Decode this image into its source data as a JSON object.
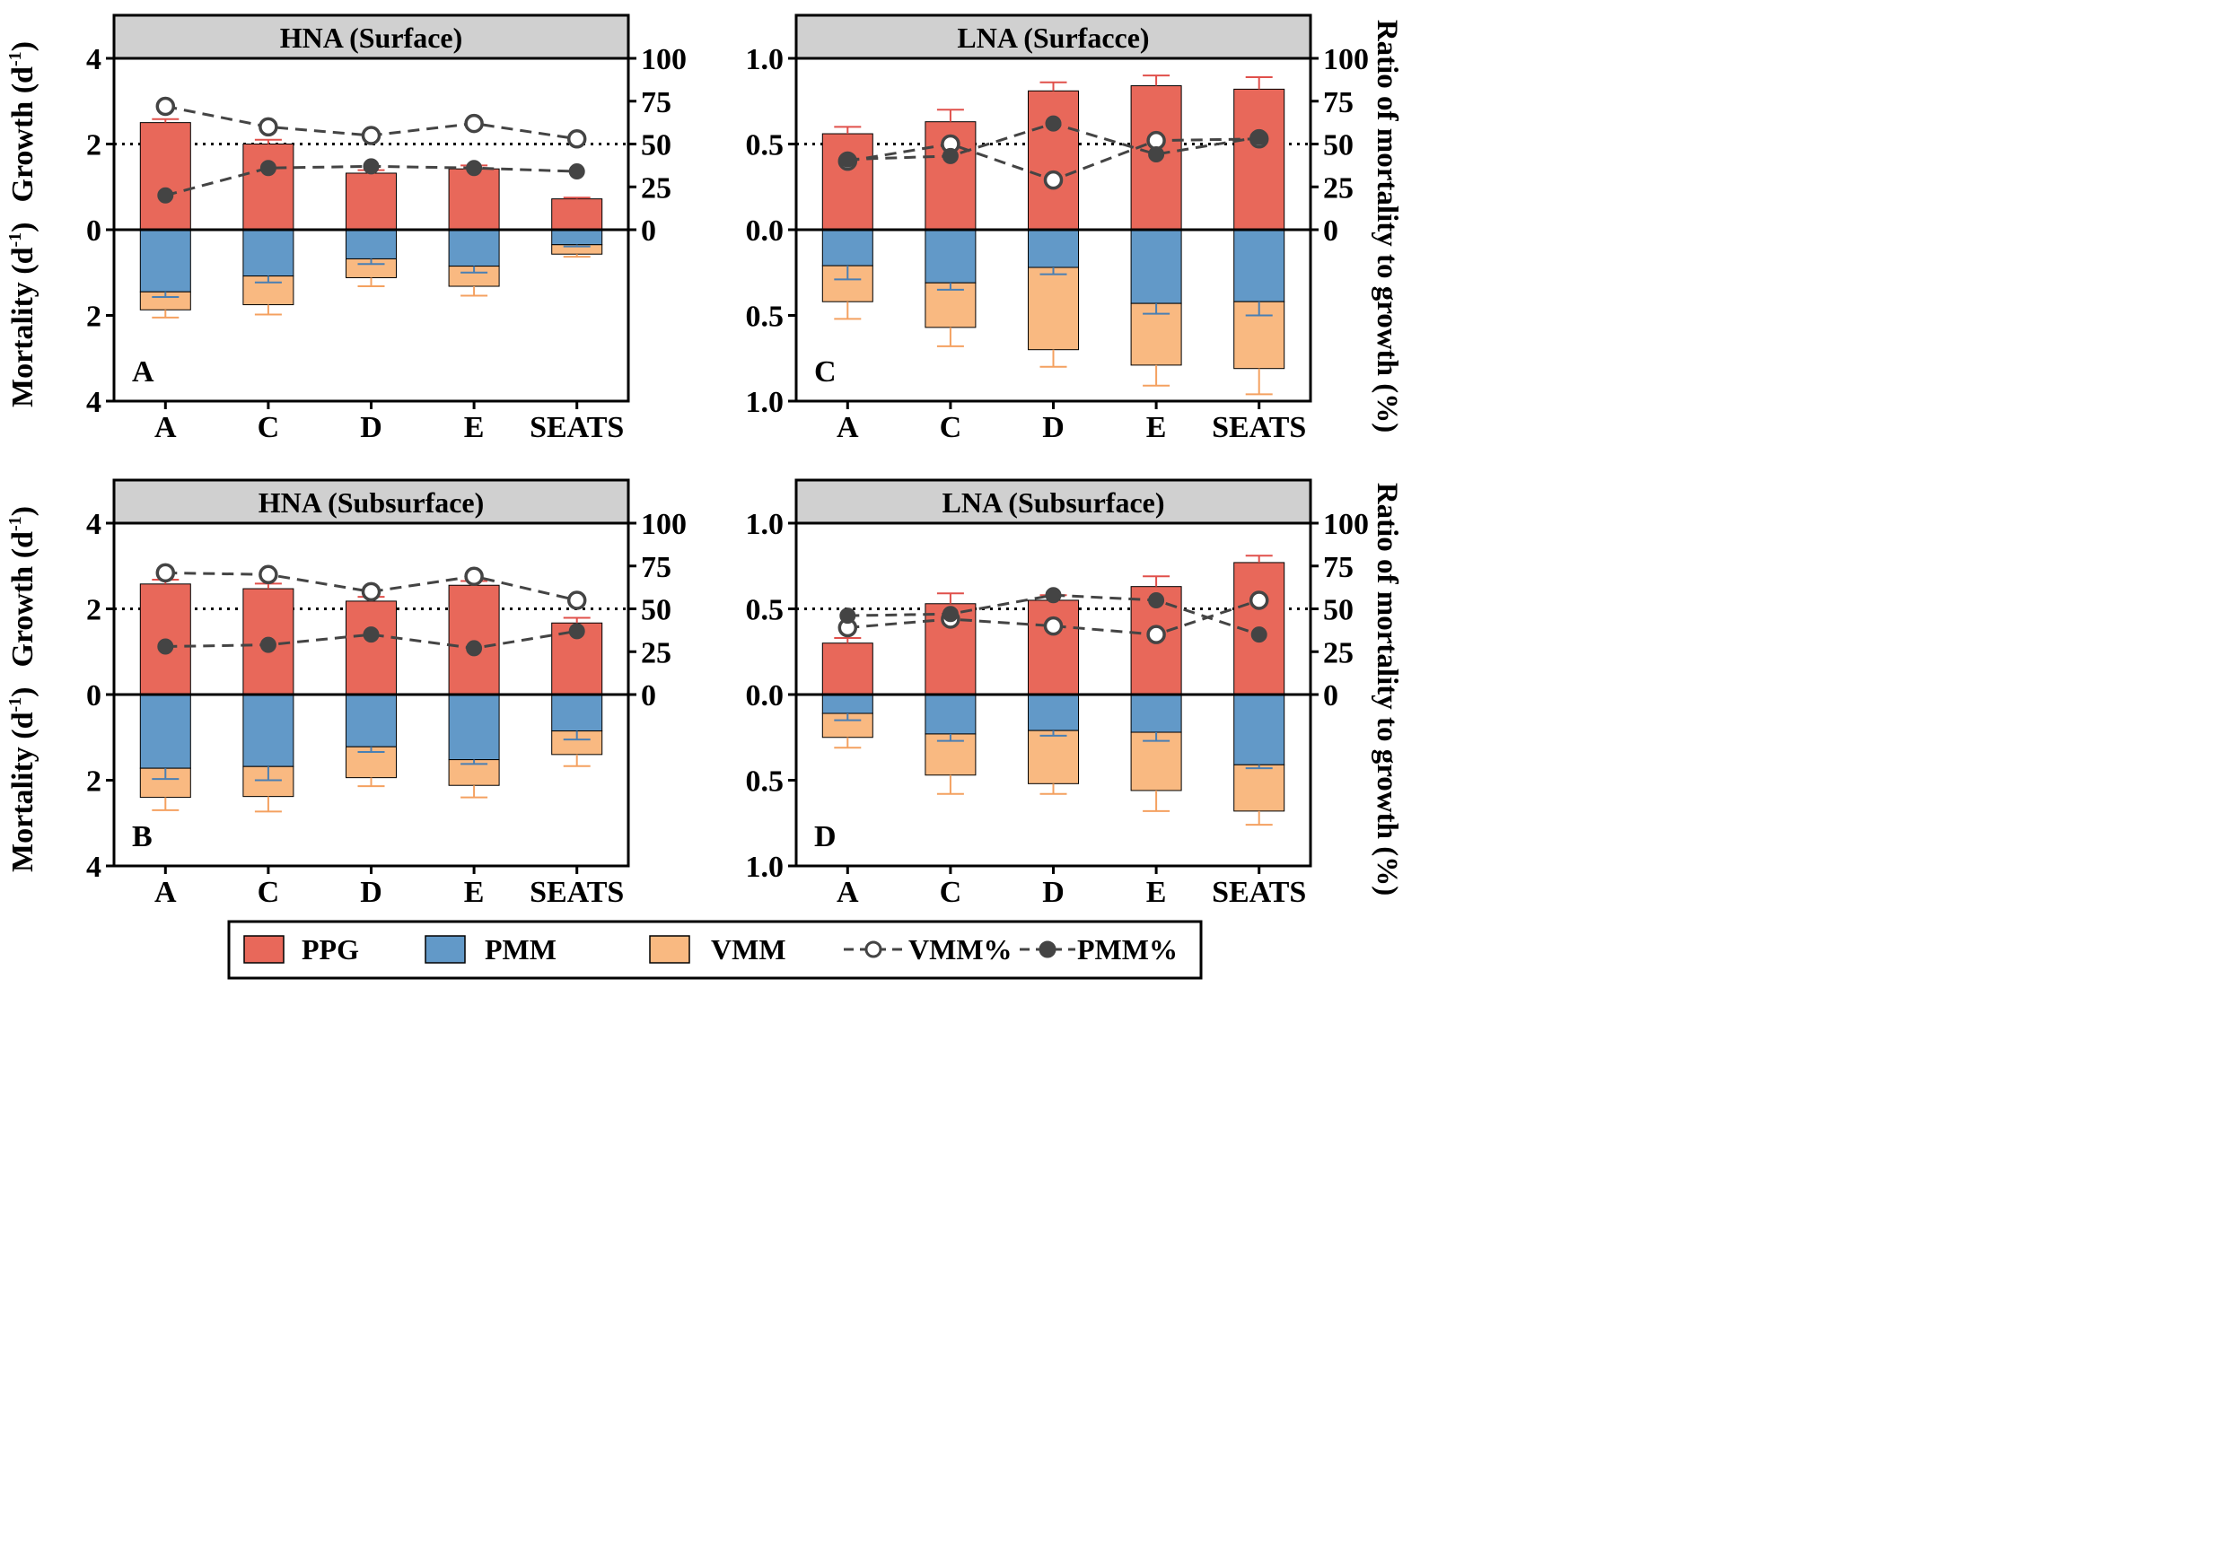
{
  "figure": {
    "left_axis_label": {
      "growth": "Growth (d",
      "mortality": "Mortality (d",
      "unit_sup": "-1",
      "unit_close": ")"
    },
    "right_axis_label": "Ratio of mortality to growth (%)",
    "categories": [
      "A",
      "C",
      "D",
      "E",
      "SEATS"
    ],
    "colors": {
      "PPG": "#e8685a",
      "PMM": "#6299c8",
      "VMM": "#f9b981",
      "PPG_err": "#e0504b",
      "PMM_err": "#4a7fb3",
      "VMM_err": "#f4a160",
      "line": "#444444"
    }
  },
  "legend": {
    "ppg": "PPG",
    "pmm": "PMM",
    "vmm": "VMM",
    "vmm_pct": "VMM%",
    "pmm_pct": "PMM%"
  },
  "panels": {
    "hna_surface": {
      "title": "HNA (Surface)",
      "letter": "A"
    },
    "lna_surface": {
      "title": "LNA (Surfacce)",
      "letter": "C"
    },
    "hna_subsurface": {
      "title": "HNA (Subsurface)",
      "letter": "B"
    },
    "lna_subsurface": {
      "title": "LNA (Subsurface)",
      "letter": "D"
    }
  },
  "chart_data": [
    {
      "id": "hna_surface",
      "type": "bar",
      "title": "HNA (Surface)",
      "panel_letter": "A",
      "categories": [
        "A",
        "C",
        "D",
        "E",
        "SEATS"
      ],
      "ylabel": "Growth (d-1) / Mortality (d-1)",
      "y2label": "Ratio of mortality to growth (%)",
      "ylim_growth": [
        0,
        4
      ],
      "ylim_mortality": [
        0,
        4
      ],
      "yticks": [
        "4",
        "2",
        "0",
        "2",
        "4"
      ],
      "y2lim": [
        0,
        100
      ],
      "y2ticks": [
        "100",
        "75",
        "50",
        "25",
        "0"
      ],
      "reference_line_pct": 50,
      "series": [
        {
          "name": "PPG",
          "kind": "growth_bar",
          "values": [
            2.5,
            2.0,
            1.32,
            1.42,
            0.72
          ],
          "error": [
            0.08,
            0.1,
            0.07,
            0.08,
            0.03
          ]
        },
        {
          "name": "PMM",
          "kind": "mortality_bar",
          "values": [
            1.45,
            1.08,
            0.68,
            0.85,
            0.35
          ],
          "error": [
            0.12,
            0.15,
            0.12,
            0.15,
            0.04
          ]
        },
        {
          "name": "VMM",
          "kind": "mortality_bar_stacked",
          "values": [
            0.42,
            0.67,
            0.44,
            0.47,
            0.22
          ],
          "error": [
            0.18,
            0.23,
            0.2,
            0.22,
            0.06
          ]
        },
        {
          "name": "VMM%",
          "kind": "line_open",
          "values": [
            72,
            60,
            55,
            62,
            53
          ]
        },
        {
          "name": "PMM%",
          "kind": "line_filled",
          "values": [
            20,
            36,
            37,
            36,
            34
          ]
        }
      ]
    },
    {
      "id": "lna_surface",
      "type": "bar",
      "title": "LNA (Surfacce)",
      "panel_letter": "C",
      "categories": [
        "A",
        "C",
        "D",
        "E",
        "SEATS"
      ],
      "ylabel": "Growth (d-1) / Mortality (d-1)",
      "y2label": "Ratio of mortality to growth (%)",
      "ylim_growth": [
        0,
        1.0
      ],
      "ylim_mortality": [
        0,
        1.0
      ],
      "yticks": [
        "1.0",
        "0.5",
        "0.0",
        "0.5",
        "1.0"
      ],
      "y2lim": [
        0,
        100
      ],
      "y2ticks": [
        "100",
        "75",
        "50",
        "25",
        "0"
      ],
      "reference_line_pct": 50,
      "series": [
        {
          "name": "PPG",
          "kind": "growth_bar",
          "values": [
            0.56,
            0.63,
            0.81,
            0.84,
            0.82
          ],
          "error": [
            0.04,
            0.07,
            0.05,
            0.06,
            0.07
          ]
        },
        {
          "name": "PMM",
          "kind": "mortality_bar",
          "values": [
            0.21,
            0.31,
            0.22,
            0.43,
            0.42
          ],
          "error": [
            0.08,
            0.04,
            0.04,
            0.06,
            0.08
          ]
        },
        {
          "name": "VMM",
          "kind": "mortality_bar_stacked",
          "values": [
            0.21,
            0.26,
            0.48,
            0.36,
            0.39
          ],
          "error": [
            0.1,
            0.11,
            0.1,
            0.12,
            0.15
          ]
        },
        {
          "name": "VMM%",
          "kind": "line_open",
          "values": [
            40,
            50,
            29,
            52,
            53
          ]
        },
        {
          "name": "PMM%",
          "kind": "line_filled",
          "values": [
            41,
            43,
            62,
            44,
            54
          ]
        }
      ]
    },
    {
      "id": "hna_subsurface",
      "type": "bar",
      "title": "HNA (Subsurface)",
      "panel_letter": "B",
      "categories": [
        "A",
        "C",
        "D",
        "E",
        "SEATS"
      ],
      "ylabel": "Growth (d-1) / Mortality (d-1)",
      "y2label": "Ratio of mortality to growth (%)",
      "ylim_growth": [
        0,
        4
      ],
      "ylim_mortality": [
        0,
        4
      ],
      "yticks": [
        "4",
        "2",
        "0",
        "2",
        "4"
      ],
      "y2lim": [
        0,
        100
      ],
      "y2ticks": [
        "100",
        "75",
        "50",
        "25",
        "0"
      ],
      "reference_line_pct": 50,
      "series": [
        {
          "name": "PPG",
          "kind": "growth_bar",
          "values": [
            2.58,
            2.47,
            2.18,
            2.55,
            1.67
          ],
          "error": [
            0.1,
            0.12,
            0.1,
            0.1,
            0.12
          ]
        },
        {
          "name": "PMM",
          "kind": "mortality_bar",
          "values": [
            1.72,
            1.68,
            1.22,
            1.52,
            0.85
          ],
          "error": [
            0.25,
            0.32,
            0.12,
            0.1,
            0.2
          ]
        },
        {
          "name": "VMM",
          "kind": "mortality_bar_stacked",
          "values": [
            0.68,
            0.7,
            0.72,
            0.6,
            0.55
          ],
          "error": [
            0.3,
            0.35,
            0.2,
            0.28,
            0.27
          ]
        },
        {
          "name": "VMM%",
          "kind": "line_open",
          "values": [
            71,
            70,
            60,
            69,
            55
          ]
        },
        {
          "name": "PMM%",
          "kind": "line_filled",
          "values": [
            28,
            29,
            35,
            27,
            37
          ]
        }
      ]
    },
    {
      "id": "lna_subsurface",
      "type": "bar",
      "title": "LNA (Subsurface)",
      "panel_letter": "D",
      "categories": [
        "A",
        "C",
        "D",
        "E",
        "SEATS"
      ],
      "ylabel": "Growth (d-1) / Mortality (d-1)",
      "y2label": "Ratio of mortality to growth (%)",
      "ylim_growth": [
        0,
        1.0
      ],
      "ylim_mortality": [
        0,
        1.0
      ],
      "yticks": [
        "1.0",
        "0.5",
        "0.0",
        "0.5",
        "1.0"
      ],
      "y2lim": [
        0,
        100
      ],
      "y2ticks": [
        "100",
        "75",
        "50",
        "25",
        "0"
      ],
      "reference_line_pct": 50,
      "series": [
        {
          "name": "PPG",
          "kind": "growth_bar",
          "values": [
            0.3,
            0.53,
            0.55,
            0.63,
            0.77
          ],
          "error": [
            0.03,
            0.06,
            0.03,
            0.06,
            0.04
          ]
        },
        {
          "name": "PMM",
          "kind": "mortality_bar",
          "values": [
            0.11,
            0.23,
            0.21,
            0.22,
            0.41
          ],
          "error": [
            0.04,
            0.04,
            0.03,
            0.05,
            0.02
          ]
        },
        {
          "name": "VMM",
          "kind": "mortality_bar_stacked",
          "values": [
            0.14,
            0.24,
            0.31,
            0.34,
            0.27
          ],
          "error": [
            0.06,
            0.11,
            0.06,
            0.12,
            0.08
          ]
        },
        {
          "name": "VMM%",
          "kind": "line_open",
          "values": [
            39,
            44,
            40,
            35,
            55
          ]
        },
        {
          "name": "PMM%",
          "kind": "line_filled",
          "values": [
            46,
            47,
            58,
            55,
            35
          ]
        }
      ]
    }
  ]
}
